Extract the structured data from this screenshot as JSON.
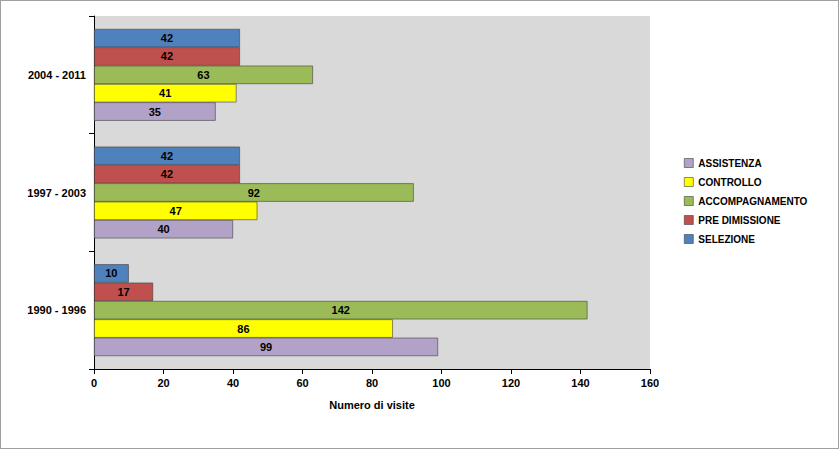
{
  "chart_data": {
    "type": "bar",
    "orientation": "horizontal",
    "x_label": "Numero di visite",
    "categories": [
      "1990 - 1996",
      "1997 - 2003",
      "2004 - 2011"
    ],
    "series": [
      {
        "name": "ASSISTENZA",
        "color": "#b3a2c7",
        "values": [
          99,
          40,
          35
        ]
      },
      {
        "name": "CONTROLLO",
        "color": "#ffff00",
        "values": [
          86,
          47,
          41
        ]
      },
      {
        "name": "ACCOMPAGNAMENTO",
        "color": "#9bbb59",
        "values": [
          142,
          92,
          63
        ]
      },
      {
        "name": "PRE DIMISSIONE",
        "color": "#c0504d",
        "values": [
          17,
          42,
          42
        ]
      },
      {
        "name": "SELEZIONE",
        "color": "#4f81bd",
        "values": [
          10,
          42,
          42
        ]
      }
    ],
    "xlim": [
      0,
      160
    ],
    "xticks": [
      0,
      20,
      40,
      60,
      80,
      100,
      120,
      140,
      160
    ],
    "grid": false,
    "data_labels": true,
    "legend": "right"
  }
}
